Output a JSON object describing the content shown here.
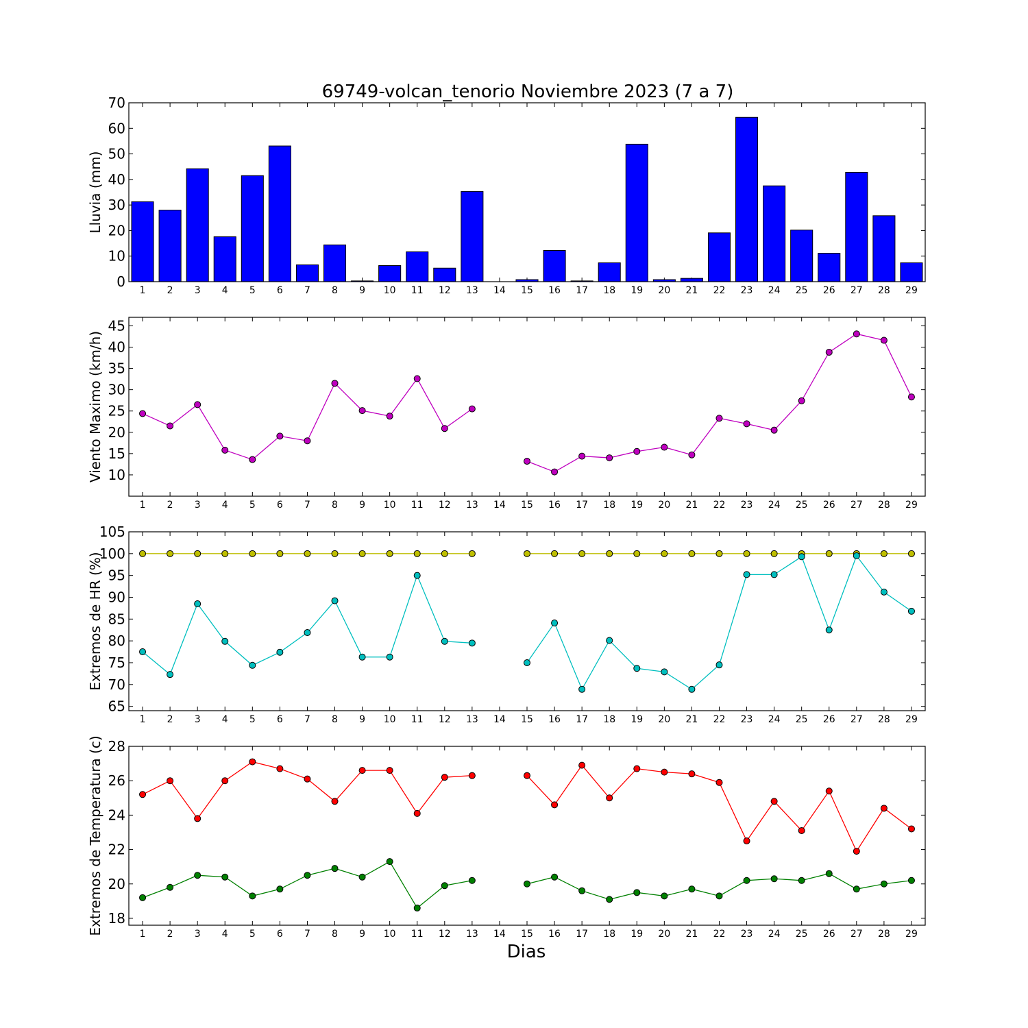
{
  "figure": {
    "title": "69749-volcan_tenorio Noviembre 2023  (7 a 7)",
    "xlabel": "Dias"
  },
  "chart_data": [
    {
      "type": "bar",
      "ylabel": "Lluvia (mm)",
      "ylim": [
        0,
        70
      ],
      "yticks": [
        0,
        10,
        20,
        30,
        40,
        50,
        60,
        70
      ],
      "x": [
        1,
        2,
        3,
        4,
        5,
        6,
        7,
        8,
        9,
        10,
        11,
        12,
        13,
        14,
        15,
        16,
        17,
        18,
        19,
        20,
        21,
        22,
        23,
        24,
        25,
        26,
        27,
        28,
        29
      ],
      "xlim": [
        0.5,
        29.5
      ],
      "series": [
        {
          "color": "#0000ff",
          "values": [
            31.3,
            28.0,
            44.2,
            17.6,
            41.5,
            53.1,
            6.6,
            14.4,
            0.3,
            6.3,
            11.7,
            5.3,
            35.3,
            0,
            0.8,
            12.2,
            0.3,
            7.4,
            53.8,
            0.8,
            1.3,
            19.1,
            64.3,
            37.5,
            20.2,
            11.1,
            42.8,
            25.8,
            7.4
          ]
        }
      ]
    },
    {
      "type": "line",
      "ylabel": "Viento Maximo (km/h)",
      "ylim": [
        5,
        47
      ],
      "yticks": [
        10,
        15,
        20,
        25,
        30,
        35,
        40,
        45
      ],
      "x": [
        1,
        2,
        3,
        4,
        5,
        6,
        7,
        8,
        9,
        10,
        11,
        12,
        13,
        14,
        15,
        16,
        17,
        18,
        19,
        20,
        21,
        22,
        23,
        24,
        25,
        26,
        27,
        28,
        29
      ],
      "xlim": [
        0.5,
        29.5
      ],
      "series": [
        {
          "color": "#bf00bf",
          "values": [
            24.4,
            21.5,
            26.5,
            15.8,
            13.6,
            19.1,
            18.0,
            31.5,
            25.1,
            23.8,
            32.6,
            20.9,
            25.5,
            null,
            13.2,
            10.7,
            14.4,
            14.0,
            15.5,
            16.5,
            14.7,
            23.3,
            22.0,
            20.5,
            27.4,
            38.8,
            43.1,
            41.6,
            28.3
          ]
        }
      ]
    },
    {
      "type": "line",
      "ylabel": "Extremos de HR (%)",
      "ylim": [
        64,
        105
      ],
      "yticks": [
        65,
        70,
        75,
        80,
        85,
        90,
        95,
        100,
        105
      ],
      "x": [
        1,
        2,
        3,
        4,
        5,
        6,
        7,
        8,
        9,
        10,
        11,
        12,
        13,
        14,
        15,
        16,
        17,
        18,
        19,
        20,
        21,
        22,
        23,
        24,
        25,
        26,
        27,
        28,
        29
      ],
      "xlim": [
        0.5,
        29.5
      ],
      "series": [
        {
          "color": "#bfbf00",
          "values": [
            100,
            100,
            100,
            100,
            100,
            100,
            100,
            100,
            100,
            100,
            100,
            100,
            100,
            null,
            100,
            100,
            100,
            100,
            100,
            100,
            100,
            100,
            100,
            100,
            100,
            100,
            100,
            100,
            100
          ]
        },
        {
          "color": "#00bfbf",
          "values": [
            77.5,
            72.3,
            88.5,
            79.9,
            74.4,
            77.4,
            81.9,
            89.2,
            76.3,
            76.3,
            95.0,
            79.9,
            79.5,
            null,
            75.0,
            84.1,
            68.9,
            80.1,
            73.7,
            72.9,
            68.9,
            74.5,
            95.2,
            95.2,
            99.3,
            82.5,
            99.5,
            91.2,
            86.8
          ]
        }
      ]
    },
    {
      "type": "line",
      "ylabel": "Extremos de Temperatura (c)",
      "ylim": [
        17.6,
        28
      ],
      "yticks": [
        18,
        20,
        22,
        24,
        26,
        28
      ],
      "x": [
        1,
        2,
        3,
        4,
        5,
        6,
        7,
        8,
        9,
        10,
        11,
        12,
        13,
        14,
        15,
        16,
        17,
        18,
        19,
        20,
        21,
        22,
        23,
        24,
        25,
        26,
        27,
        28,
        29
      ],
      "xlim": [
        0.5,
        29.5
      ],
      "series": [
        {
          "color": "#ff0000",
          "values": [
            25.2,
            26.0,
            23.8,
            26.0,
            27.1,
            26.7,
            26.1,
            24.8,
            26.6,
            26.6,
            24.1,
            26.2,
            26.3,
            null,
            26.3,
            24.6,
            26.9,
            25.0,
            26.7,
            26.5,
            26.4,
            25.9,
            22.5,
            24.8,
            23.1,
            25.4,
            21.9,
            24.4,
            23.2
          ]
        },
        {
          "color": "#008000",
          "values": [
            19.2,
            19.8,
            20.5,
            20.4,
            19.3,
            19.7,
            20.5,
            20.9,
            20.4,
            21.3,
            18.6,
            19.9,
            20.2,
            null,
            20.0,
            20.4,
            19.6,
            19.1,
            19.5,
            19.3,
            19.7,
            19.3,
            20.2,
            20.3,
            20.2,
            20.6,
            19.7,
            20.0,
            20.2
          ]
        }
      ]
    }
  ]
}
